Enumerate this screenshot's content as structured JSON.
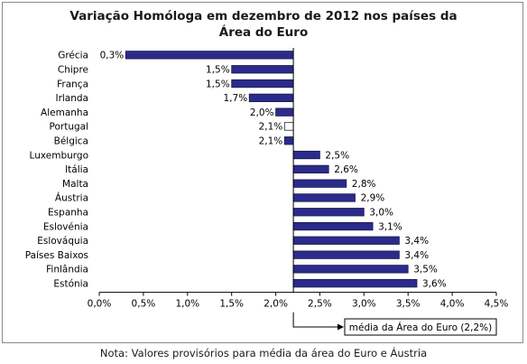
{
  "chart_data": {
    "type": "bar",
    "orientation": "horizontal",
    "title_lines": [
      "Variação Homóloga em dezembro de 2012 nos países da",
      "Área do Euro"
    ],
    "categories": [
      "Grécia",
      "Chipre",
      "França",
      "Irlanda",
      "Alemanha",
      "Portugal",
      "Bélgica",
      "Luxemburgo",
      "Itália",
      "Malta",
      "Áustria",
      "Espanha",
      "Eslovénia",
      "Eslováquia",
      "Países Baixos",
      "Finlândia",
      "Estónia"
    ],
    "values": [
      0.3,
      1.5,
      1.5,
      1.7,
      2.0,
      2.1,
      2.1,
      2.5,
      2.6,
      2.8,
      2.9,
      3.0,
      3.1,
      3.4,
      3.4,
      3.5,
      3.6
    ],
    "value_labels": [
      "0,3%",
      "1,5%",
      "1,5%",
      "1,7%",
      "2,0%",
      "2,1%",
      "2,1%",
      "2,5%",
      "2,6%",
      "2,8%",
      "2,9%",
      "3,0%",
      "3,1%",
      "3,4%",
      "3,4%",
      "3,5%",
      "3,6%"
    ],
    "highlight_category": "Portugal",
    "xlim": [
      0,
      4.5
    ],
    "xticks": [
      0,
      0.5,
      1.0,
      1.5,
      2.0,
      2.5,
      3.0,
      3.5,
      4.0,
      4.5
    ],
    "xtick_labels": [
      "0,0%",
      "0,5%",
      "1,0%",
      "1,5%",
      "2,0%",
      "2,5%",
      "3,0%",
      "3,5%",
      "4,0%",
      "4,5%"
    ],
    "reference_value": 2.2,
    "reference_label": "média da Área do Euro (2,2%)",
    "grid": false,
    "colors": {
      "bar": "#2b2b8c",
      "bar_highlight": "#ffffff",
      "bar_edge": "#1a1a4a"
    }
  },
  "note": "Nota: Valores provisórios para média da área do Euro e Áustria"
}
